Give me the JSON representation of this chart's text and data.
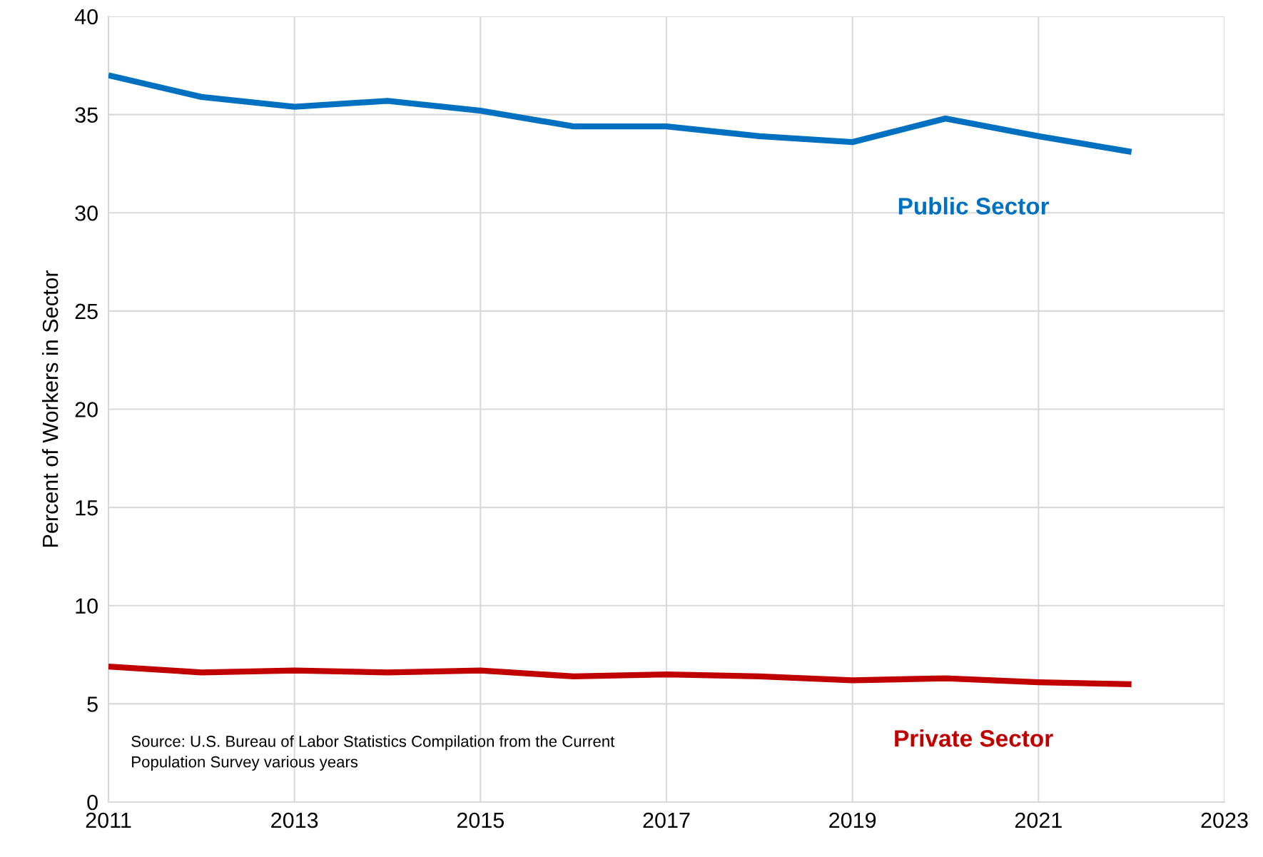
{
  "chart_data": {
    "type": "line",
    "ylabel": "Percent of Workers in Sector",
    "x": [
      2011,
      2012,
      2013,
      2014,
      2015,
      2016,
      2017,
      2018,
      2019,
      2020,
      2021,
      2022
    ],
    "series": [
      {
        "name": "Public Sector",
        "color": "#0070c0",
        "values": [
          37.0,
          35.9,
          35.4,
          35.7,
          35.2,
          34.4,
          34.4,
          33.9,
          33.6,
          34.8,
          33.9,
          33.1
        ]
      },
      {
        "name": "Private Sector",
        "color": "#c00000",
        "values": [
          6.9,
          6.6,
          6.7,
          6.6,
          6.7,
          6.4,
          6.5,
          6.4,
          6.2,
          6.3,
          6.1,
          6.0
        ]
      }
    ],
    "xlim": [
      2011,
      2023
    ],
    "xticks": [
      2011,
      2013,
      2015,
      2017,
      2019,
      2021,
      2023
    ],
    "ylim": [
      0,
      40
    ],
    "yticks": [
      0,
      5,
      10,
      15,
      20,
      25,
      30,
      35,
      40
    ],
    "grid": true,
    "legend": false,
    "marker": "none",
    "line_style": "solid",
    "annotations": [
      "Source: U.S. Bureau of Labor Statistics Compilation from the Current\nPopulation Survey various years"
    ]
  }
}
